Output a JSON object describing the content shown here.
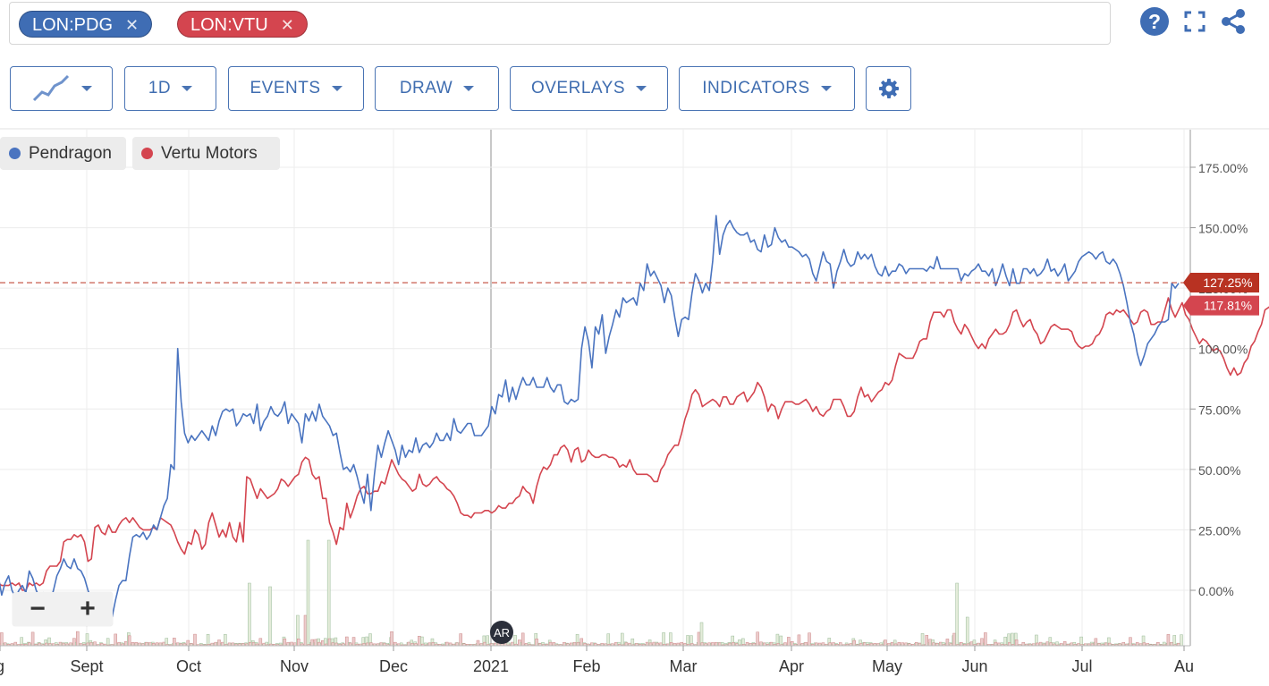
{
  "symbols": [
    {
      "label": "LON:PDG",
      "color": "#3f6db4"
    },
    {
      "label": "LON:VTU",
      "color": "#d4454f"
    }
  ],
  "toolbar": {
    "interval": "1D",
    "events": "EVENTS",
    "draw": "DRAW",
    "overlays": "OVERLAYS",
    "indicators": "INDICATORS"
  },
  "top_icons": [
    "help-icon",
    "fullscreen-icon",
    "share-icon"
  ],
  "legend": [
    {
      "name": "Pendragon",
      "color": "#4a74c0"
    },
    {
      "name": "Vertu Motors",
      "color": "#d4454f"
    }
  ],
  "event_marker": "AR",
  "zoom": {
    "minus": "−",
    "plus": "+"
  },
  "chart_data": {
    "type": "line",
    "x_labels": [
      "g",
      "Sept",
      "Oct",
      "Nov",
      "Dec",
      "2021",
      "Feb",
      "Mar",
      "Apr",
      "May",
      "Jun",
      "Jul",
      "Au"
    ],
    "y_ticks": [
      "175.00%",
      "150.00%",
      "125.00%",
      "100.00%",
      "75.00%",
      "50.00%",
      "25.00%",
      "0.00%"
    ],
    "y_tick_values": [
      175,
      150,
      125,
      100,
      75,
      50,
      25,
      0
    ],
    "ylim": [
      -20,
      190
    ],
    "last_value_labels": [
      {
        "series": "Pendragon",
        "text": "127.25%",
        "value": 127.25,
        "color": "#b83222"
      },
      {
        "series": "Vertu Motors",
        "text": "117.81%",
        "value": 117.81,
        "color": "#d4454f"
      }
    ],
    "series": [
      {
        "name": "Pendragon",
        "color": "#4a74c0",
        "values": [
          6,
          -2,
          3,
          6,
          0,
          -3,
          0,
          2,
          -1,
          8,
          5,
          0,
          -3,
          -1,
          -8,
          -5,
          0,
          6,
          9,
          13,
          10,
          9,
          13,
          9,
          8,
          5,
          0,
          -4,
          -10,
          -3,
          -8,
          -6,
          -5,
          -11,
          -4,
          2,
          4,
          4,
          14,
          22,
          23,
          22,
          24,
          21,
          23,
          27,
          25,
          30,
          35,
          38,
          52,
          50,
          100,
          78,
          65,
          61,
          64,
          62,
          64,
          66,
          64,
          62,
          68,
          64,
          70,
          74,
          75,
          74,
          75,
          68,
          70,
          73,
          72,
          73,
          69,
          77,
          66,
          70,
          72,
          76,
          73,
          72,
          74,
          78,
          69,
          73,
          71,
          69,
          61,
          73,
          70,
          74,
          70,
          77,
          72,
          70,
          68,
          64,
          65,
          57,
          50,
          51,
          49,
          52,
          47,
          41,
          36,
          48,
          33,
          48,
          60,
          55,
          61,
          66,
          62,
          58,
          52,
          60,
          55,
          58,
          57,
          63,
          57,
          60,
          61,
          59,
          61,
          65,
          62,
          62,
          65,
          62,
          71,
          66,
          65,
          67,
          69,
          69,
          64,
          64,
          64,
          66,
          68,
          76,
          73,
          81,
          80,
          87,
          78,
          84,
          79,
          84,
          88,
          85,
          85,
          88,
          84,
          84,
          84,
          88,
          84,
          82,
          85,
          85,
          78,
          77,
          79,
          78,
          79,
          100,
          109,
          103,
          92,
          109,
          106,
          114,
          98,
          105,
          110,
          116,
          113,
          121,
          119,
          120,
          121,
          118,
          127,
          124,
          135,
          130,
          132,
          129,
          126,
          119,
          125,
          122,
          113,
          105,
          112,
          113,
          112,
          123,
          131,
          128,
          123,
          127,
          124,
          136,
          155,
          139,
          147,
          151,
          153,
          150,
          148,
          147,
          147,
          148,
          144,
          145,
          141,
          140,
          147,
          142,
          143,
          150,
          146,
          144,
          145,
          142,
          142,
          141,
          140,
          138,
          139,
          137,
          131,
          128,
          134,
          140,
          136,
          135,
          125,
          132,
          136,
          141,
          136,
          134,
          135,
          140,
          137,
          139,
          137,
          139,
          134,
          131,
          130,
          134,
          130,
          132,
          132,
          135,
          134,
          131,
          133,
          133,
          133,
          133,
          133,
          132,
          134,
          133,
          138,
          133,
          133,
          133,
          133,
          133,
          133,
          128,
          131,
          130,
          132,
          133,
          135,
          132,
          132,
          130,
          133,
          126,
          130,
          135,
          130,
          126,
          133,
          127,
          127,
          133,
          133,
          131,
          133,
          130,
          131,
          133,
          137,
          132,
          133,
          130,
          132,
          135,
          128,
          130,
          132,
          136,
          138,
          139,
          140,
          139,
          137,
          139,
          140,
          136,
          135,
          137,
          135,
          131,
          126,
          119,
          111,
          106,
          98,
          93,
          97,
          102,
          104,
          106,
          109,
          111,
          111,
          112,
          127,
          125,
          127
        ]
      },
      {
        "name": "Vertu Motors",
        "color": "#d4454f",
        "values": [
          3,
          2,
          2,
          2,
          3,
          2,
          3,
          0,
          0,
          3,
          2,
          3,
          2,
          3,
          8,
          10,
          10,
          10,
          12,
          20,
          21,
          21,
          23,
          22,
          23,
          20,
          12,
          13,
          26,
          27,
          24,
          23,
          27,
          24,
          24,
          27,
          29,
          30,
          28,
          30,
          28,
          26,
          25,
          25,
          25,
          26,
          25,
          30,
          29,
          28,
          27,
          24,
          20,
          17,
          15,
          20,
          19,
          25,
          23,
          17,
          19,
          28,
          32,
          27,
          22,
          25,
          22,
          28,
          22,
          20,
          28,
          20,
          47,
          46,
          42,
          38,
          42,
          40,
          38,
          39,
          40,
          42,
          46,
          45,
          43,
          45,
          47,
          48,
          53,
          55,
          54,
          48,
          46,
          47,
          38,
          38,
          28,
          24,
          19,
          26,
          25,
          36,
          30,
          34,
          39,
          42,
          43,
          40,
          40,
          41,
          41,
          45,
          44,
          49,
          54,
          51,
          48,
          46,
          45,
          43,
          41,
          42,
          48,
          44,
          43,
          44,
          46,
          47,
          45,
          44,
          42,
          41,
          39,
          36,
          32,
          31,
          31,
          30,
          32,
          32,
          32,
          33,
          33,
          32,
          33,
          35,
          34,
          34,
          36,
          36,
          38,
          39,
          43,
          41,
          40,
          36,
          43,
          48,
          51,
          50,
          52,
          56,
          56,
          59,
          60,
          58,
          53,
          58,
          59,
          53,
          54,
          58,
          56,
          55,
          55,
          56,
          56,
          55,
          55,
          54,
          51,
          52,
          51,
          54,
          50,
          48,
          48,
          48,
          48,
          47,
          45,
          45,
          50,
          52,
          56,
          58,
          60,
          60,
          65,
          71,
          75,
          81,
          83,
          81,
          76,
          77,
          78,
          79,
          78,
          76,
          80,
          80,
          77,
          77,
          80,
          81,
          82,
          78,
          80,
          82,
          86,
          84,
          80,
          74,
          77,
          76,
          71,
          75,
          78,
          78,
          78,
          77,
          77,
          78,
          79,
          77,
          74,
          76,
          73,
          72,
          74,
          75,
          79,
          79,
          79,
          76,
          72,
          72,
          74,
          80,
          84,
          80,
          81,
          78,
          80,
          82,
          83,
          86,
          85,
          87,
          93,
          98,
          97,
          96,
          96,
          96,
          99,
          103,
          104,
          104,
          111,
          115,
          115,
          115,
          113,
          116,
          116,
          111,
          108,
          106,
          110,
          108,
          105,
          102,
          100,
          102,
          100,
          104,
          106,
          108,
          106,
          106,
          107,
          110,
          115,
          116,
          112,
          109,
          111,
          112,
          108,
          106,
          102,
          103,
          106,
          109,
          110,
          109,
          108,
          108,
          108,
          107,
          103,
          101,
          100,
          101,
          101,
          102,
          105,
          106,
          109,
          114,
          115,
          114,
          116,
          115,
          116,
          114,
          112,
          110,
          111,
          115,
          116,
          115,
          110,
          110,
          111,
          111,
          116,
          121,
          116,
          113,
          116,
          119,
          114,
          112,
          108,
          105,
          102,
          104,
          103,
          101,
          99,
          100,
          99,
          96,
          92,
          89,
          92,
          89,
          90,
          94,
          96,
          101,
          103,
          107,
          110,
          116,
          117,
          118
        ]
      }
    ],
    "volume_color_pdg": "#e4ecda",
    "volume_color_vtu": "#eccccc"
  }
}
